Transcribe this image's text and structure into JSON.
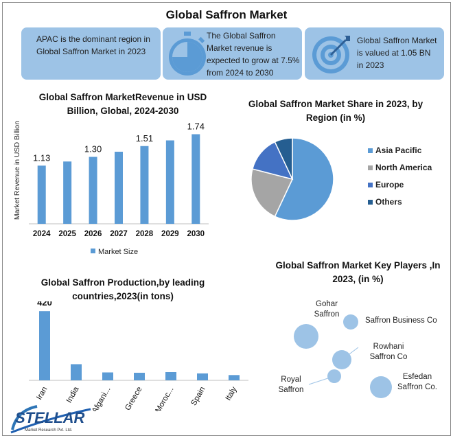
{
  "title": "Global Saffron Market",
  "kpis": [
    {
      "text": "APAC is the dominant region in Global Saffron Market in 2023"
    },
    {
      "text": "The Global Saffron Market revenue is expected to grow at 7.5% from 2024 to 2030",
      "icon": "stopwatch-icon"
    },
    {
      "text": "Global Saffron Market is valued at 1.05 BN in 2023",
      "icon": "target-icon"
    }
  ],
  "colors": {
    "accent": "#5b9bd5",
    "panel": "#9dc3e6",
    "grey": "#a5a5a5",
    "navy": "#264478",
    "dark_blue": "#255e91"
  },
  "chart_data": [
    {
      "type": "bar",
      "title": "Global Saffron MarketRevenue in USD Billion, Global, 2024-2030",
      "ylabel": "Market Revenue in USD Billion",
      "categories": [
        "2024",
        "2025",
        "2026",
        "2027",
        "2028",
        "2029",
        "2030"
      ],
      "series": [
        {
          "name": "Market Size",
          "values": [
            1.13,
            1.21,
            1.3,
            1.4,
            1.51,
            1.62,
            1.74
          ]
        }
      ],
      "data_labels": {
        "2024": "1.13",
        "2026": "1.30",
        "2028": "1.51",
        "2030": "1.74"
      },
      "ylim": [
        0,
        2
      ],
      "legend": "bottom"
    },
    {
      "type": "pie",
      "title": "Global Saffron Market Share in 2023, by Region (in %)",
      "labels": [
        "Asia Pacific",
        "North America",
        "Europe",
        "Others"
      ],
      "values": [
        57,
        22,
        14,
        7
      ],
      "colors": [
        "#5b9bd5",
        "#a5a5a5",
        "#4472c4",
        "#255e91"
      ],
      "legend": "right"
    },
    {
      "type": "bar",
      "title": "Global Saffron Production,by leading countries,2023(in tons)",
      "categories": [
        "Iran",
        "India",
        "Afgani...",
        "Greece",
        "Moroc...",
        "Spain",
        "Italy"
      ],
      "values": [
        420,
        98,
        48,
        46,
        50,
        42,
        32
      ],
      "data_labels": {
        "Iran": "420"
      },
      "ylim": [
        0,
        450
      ]
    },
    {
      "type": "scatter",
      "title": "Global Saffron Market Key Players ,In 2023, (in %)",
      "points": [
        {
          "label": "Gohar Saffron",
          "size": 18
        },
        {
          "label": "Saffron Business Co",
          "size": 11
        },
        {
          "label": "Rowhani Saffron Co",
          "size": 14
        },
        {
          "label": "Royal Saffron",
          "size": 10
        },
        {
          "label": "Esfedan Saffron Co.",
          "size": 16
        }
      ]
    }
  ],
  "logo": {
    "name": "STELLAR",
    "tagline": "Market Research Pvt. Ltd."
  }
}
